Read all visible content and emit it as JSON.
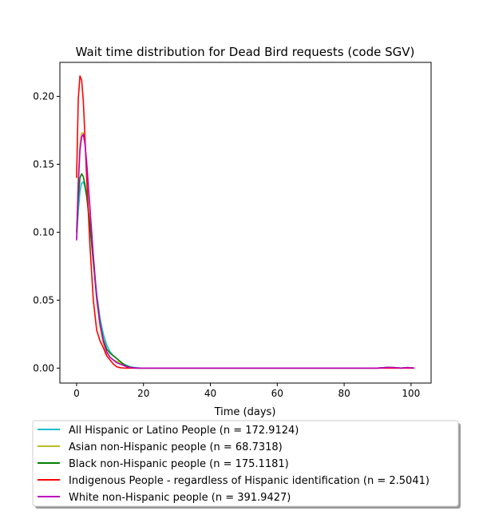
{
  "chart_data": {
    "type": "line",
    "title": "Wait time distribution  for Dead Bird  requests (code SGV)",
    "xlabel": "Time (days)",
    "ylabel": "",
    "xlim": [
      -5,
      106
    ],
    "ylim": [
      -0.011,
      0.225
    ],
    "xticks": [
      0,
      20,
      40,
      60,
      80,
      100
    ],
    "xtick_labels": [
      "0",
      "20",
      "40",
      "60",
      "80",
      "100"
    ],
    "yticks": [
      0.0,
      0.05,
      0.1,
      0.15,
      0.2
    ],
    "ytick_labels": [
      "0.00",
      "0.05",
      "0.10",
      "0.15",
      "0.20"
    ],
    "grid": false,
    "legend_position": "below chart",
    "x": [
      0,
      0.5,
      1,
      1.5,
      2,
      2.5,
      3,
      4,
      5,
      6,
      7,
      8,
      9,
      10,
      11,
      12,
      13,
      14,
      15,
      16,
      17,
      18,
      19,
      20,
      25,
      30,
      40,
      50,
      60,
      70,
      80,
      90,
      93,
      95,
      97,
      99,
      101
    ],
    "series": [
      {
        "name": "All Hispanic or Latino People (n = 172.9124)",
        "color": "#17becf",
        "values": [
          0.095,
          0.115,
          0.13,
          0.136,
          0.137,
          0.133,
          0.126,
          0.105,
          0.078,
          0.055,
          0.037,
          0.025,
          0.017,
          0.012,
          0.009,
          0.007,
          0.005,
          0.003,
          0.002,
          0.001,
          0.0006,
          0.0003,
          0.0001,
          0.0,
          0.0,
          0.0,
          0.0,
          0.0,
          0.0,
          0.0,
          0.0,
          0.0,
          0.0005,
          0.0004,
          0.0,
          0.0004,
          0.0
        ]
      },
      {
        "name": "Asian non-Hispanic people (n = 68.7318)",
        "color": "#bcbd22",
        "values": [
          0.1,
          0.14,
          0.165,
          0.173,
          0.173,
          0.165,
          0.15,
          0.115,
          0.08,
          0.05,
          0.03,
          0.018,
          0.011,
          0.008,
          0.006,
          0.005,
          0.004,
          0.002,
          0.001,
          0.0005,
          0.0,
          0.0,
          0.0,
          0.0,
          0.0,
          0.0,
          0.0,
          0.0,
          0.0,
          0.0,
          0.0,
          0.0,
          0.0005,
          0.0004,
          0.0,
          0.0004,
          0.0
        ]
      },
      {
        "name": "Black non-Hispanic people (n = 175.1181)",
        "color": "#008000",
        "values": [
          0.1,
          0.125,
          0.14,
          0.143,
          0.141,
          0.135,
          0.127,
          0.105,
          0.078,
          0.052,
          0.033,
          0.021,
          0.014,
          0.011,
          0.009,
          0.007,
          0.005,
          0.003,
          0.0015,
          0.0007,
          0.0003,
          0.0001,
          0.0,
          0.0,
          0.0,
          0.0,
          0.0,
          0.0,
          0.0,
          0.0,
          0.0,
          0.0,
          0.0005,
          0.0004,
          0.0,
          0.0004,
          0.0
        ]
      },
      {
        "name": "Indigenous People - regardless of Hispanic identification (n = 2.5041)",
        "color": "#ff0000",
        "values": [
          0.14,
          0.198,
          0.215,
          0.212,
          0.197,
          0.17,
          0.14,
          0.09,
          0.05,
          0.028,
          0.02,
          0.015,
          0.009,
          0.006,
          0.003,
          0.001,
          0.0003,
          0.0001,
          0.0,
          0.0,
          0.0,
          0.0,
          0.0,
          0.0,
          0.0,
          0.0,
          0.0,
          0.0,
          0.0,
          0.0,
          0.0,
          0.0,
          0.0,
          0.0,
          0.0,
          0.0,
          0.0
        ]
      },
      {
        "name": "White non-Hispanic people (n = 391.9427)",
        "color": "#bf00bf",
        "values": [
          0.094,
          0.135,
          0.16,
          0.17,
          0.172,
          0.165,
          0.152,
          0.118,
          0.083,
          0.053,
          0.033,
          0.02,
          0.012,
          0.008,
          0.006,
          0.004,
          0.003,
          0.002,
          0.001,
          0.0005,
          0.0002,
          0.0,
          0.0,
          0.0,
          0.0,
          0.0,
          0.0,
          0.0,
          0.0,
          0.0,
          0.0,
          0.0,
          0.0005,
          0.0004,
          0.0,
          0.0004,
          0.0
        ]
      }
    ]
  }
}
